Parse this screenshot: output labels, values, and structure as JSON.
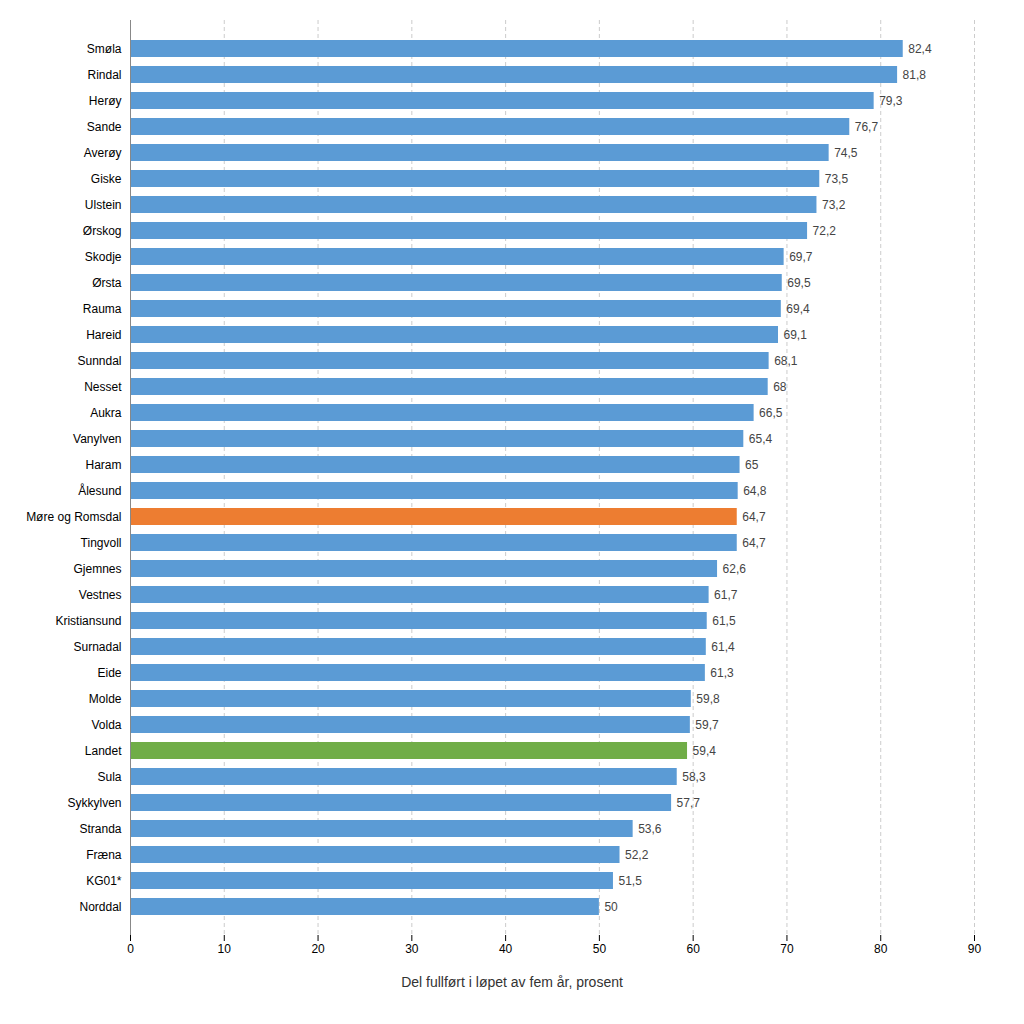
{
  "chart_data": {
    "type": "bar",
    "orientation": "horizontal",
    "categories": [
      "Smøla",
      "Rindal",
      "Herøy",
      "Sande",
      "Averøy",
      "Giske",
      "Ulstein",
      "Ørskog",
      "Skodje",
      "Ørsta",
      "Rauma",
      "Hareid",
      "Sunndal",
      "Nesset",
      "Aukra",
      "Vanylven",
      "Haram",
      "Ålesund",
      "Møre og Romsdal",
      "Tingvoll",
      "Gjemnes",
      "Vestnes",
      "Kristiansund",
      "Surnadal",
      "Eide",
      "Molde",
      "Volda",
      "Landet",
      "Sula",
      "Sykkylven",
      "Stranda",
      "Fræna",
      "KG01*",
      "Norddal"
    ],
    "values": [
      82.4,
      81.8,
      79.3,
      76.7,
      74.5,
      73.5,
      73.2,
      72.2,
      69.7,
      69.5,
      69.4,
      69.1,
      68.1,
      68,
      66.5,
      65.4,
      65,
      64.8,
      64.7,
      64.7,
      62.6,
      61.7,
      61.5,
      61.4,
      61.3,
      59.8,
      59.7,
      59.4,
      58.3,
      57.7,
      53.6,
      52.2,
      51.5,
      50
    ],
    "value_labels": [
      "82,4",
      "81,8",
      "79,3",
      "76,7",
      "74,5",
      "73,5",
      "73,2",
      "72,2",
      "69,7",
      "69,5",
      "69,4",
      "69,1",
      "68,1",
      "68",
      "66,5",
      "65,4",
      "65",
      "64,8",
      "64,7",
      "64,7",
      "62,6",
      "61,7",
      "61,5",
      "61,4",
      "61,3",
      "59,8",
      "59,7",
      "59,4",
      "58,3",
      "57,7",
      "53,6",
      "52,2",
      "51,5",
      "50"
    ],
    "colors": [
      "#5b9bd5",
      "#5b9bd5",
      "#5b9bd5",
      "#5b9bd5",
      "#5b9bd5",
      "#5b9bd5",
      "#5b9bd5",
      "#5b9bd5",
      "#5b9bd5",
      "#5b9bd5",
      "#5b9bd5",
      "#5b9bd5",
      "#5b9bd5",
      "#5b9bd5",
      "#5b9bd5",
      "#5b9bd5",
      "#5b9bd5",
      "#5b9bd5",
      "#ed7d31",
      "#5b9bd5",
      "#5b9bd5",
      "#5b9bd5",
      "#5b9bd5",
      "#5b9bd5",
      "#5b9bd5",
      "#5b9bd5",
      "#5b9bd5",
      "#70ad47",
      "#5b9bd5",
      "#5b9bd5",
      "#5b9bd5",
      "#5b9bd5",
      "#5b9bd5",
      "#5b9bd5"
    ],
    "xlabel": "Del fullført i løpet av fem år, prosent",
    "xlim": [
      0,
      90
    ],
    "xticks": [
      0,
      10,
      20,
      30,
      40,
      50,
      60,
      70,
      80,
      90
    ],
    "grid": true,
    "data_labels": true
  }
}
